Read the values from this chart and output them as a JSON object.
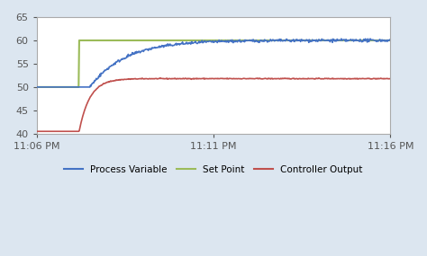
{
  "title": "",
  "xlim_minutes": [
    0,
    10
  ],
  "ylim": [
    40,
    65
  ],
  "yticks": [
    40,
    45,
    50,
    55,
    60,
    65
  ],
  "xtick_labels": [
    "11:06 PM",
    "11:11 PM",
    "11:16 PM"
  ],
  "xtick_positions": [
    0,
    5,
    10
  ],
  "background_color": "#dce6f0",
  "plot_bg_color": "#ffffff",
  "grid_color": "#ffffff",
  "pv_color": "#4472c4",
  "sp_color": "#9bbb59",
  "co_color": "#c0504d",
  "legend_labels": [
    "Process Variable",
    "Set Point",
    "Controller Output"
  ],
  "noise_amplitude": 0.15,
  "noise_seed": 42
}
